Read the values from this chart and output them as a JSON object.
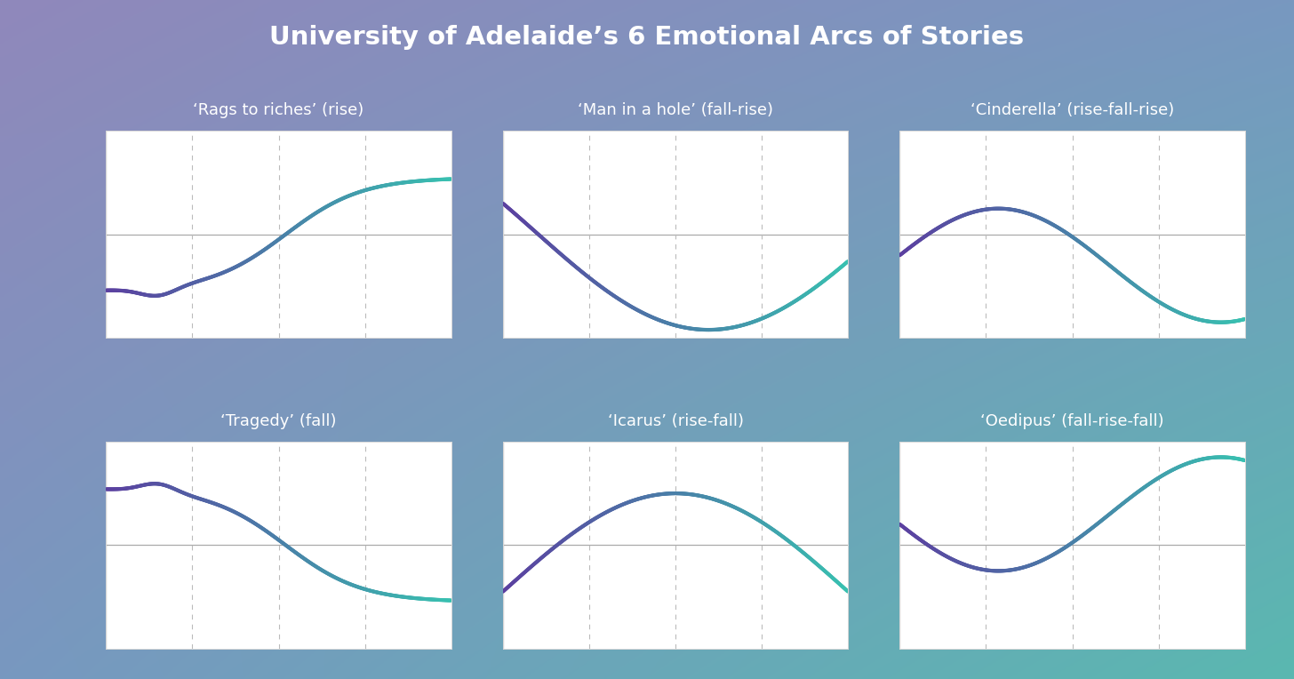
{
  "title": "University of Adelaide’s 6 Emotional Arcs of Stories",
  "title_color": "#ffffff",
  "title_fontsize": 21,
  "bg_tl": "#9088bb",
  "bg_tr": "#7898c0",
  "bg_bl": "#7898c0",
  "bg_br": "#5ab8b0",
  "panel_bg": "#ffffff",
  "subtitle_color": "#ffffff",
  "subtitle_fontsize": 13,
  "grid_dash_color": "#bbbbbb",
  "axis_color": "#aaaaaa",
  "curve_color_start": "#5b3fa0",
  "curve_color_end": "#38c0b0",
  "plots": [
    {
      "title": "‘Rags to riches’ (rise)",
      "row": 0,
      "col": 0,
      "arc_type": "rise"
    },
    {
      "title": "‘Man in a hole’ (fall-rise)",
      "row": 0,
      "col": 1,
      "arc_type": "fall-rise"
    },
    {
      "title": "‘Cinderella’ (rise-fall-rise)",
      "row": 0,
      "col": 2,
      "arc_type": "rise-fall-rise"
    },
    {
      "title": "‘Tragedy’ (fall)",
      "row": 1,
      "col": 0,
      "arc_type": "fall"
    },
    {
      "title": "‘Icarus’ (rise-fall)",
      "row": 1,
      "col": 1,
      "arc_type": "rise-fall"
    },
    {
      "title": "‘Oedipus’ (fall-rise-fall)",
      "row": 1,
      "col": 2,
      "arc_type": "fall-rise-fall"
    }
  ]
}
